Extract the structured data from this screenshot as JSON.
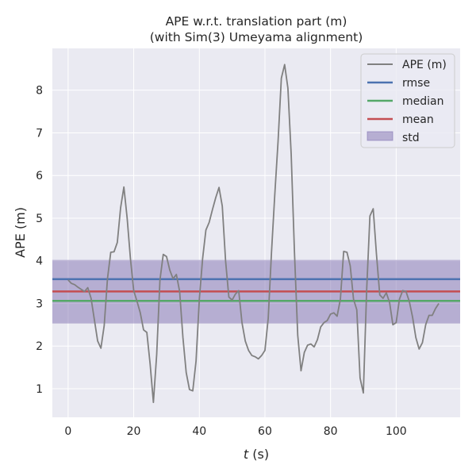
{
  "chart_data": {
    "type": "line",
    "title_line1": "APE w.r.t. translation part (m)",
    "title_line2": "(with Sim(3) Umeyama alignment)",
    "xlabel_var": "t",
    "xlabel_unit": " (s)",
    "ylabel": "APE (m)",
    "xlim": [
      -4.8,
      119.5
    ],
    "ylim": [
      0.33,
      8.98
    ],
    "xticks": [
      0,
      20,
      40,
      60,
      80,
      100
    ],
    "yticks": [
      1,
      2,
      3,
      4,
      5,
      6,
      7,
      8
    ],
    "grid": true,
    "legend_position": "top-right",
    "colors": {
      "background": "#eaeaf2",
      "grid": "#ffffff",
      "ape": "#808080",
      "rmse": "#4c72b0",
      "median": "#55a868",
      "mean": "#c44e52",
      "std": "#8172b2"
    },
    "legend": {
      "ape": "APE (m)",
      "rmse": "rmse",
      "median": "median",
      "mean": "mean",
      "std": "std"
    },
    "stats": {
      "rmse": 3.57,
      "median": 3.06,
      "mean": 3.28,
      "std_low": 2.53,
      "std_high": 4.02
    },
    "series": [
      {
        "name": "APE (m)",
        "x": [
          0,
          1,
          2,
          3,
          4,
          5,
          6,
          7,
          8,
          9,
          10,
          11,
          12,
          13,
          14,
          15,
          16,
          17,
          18,
          19,
          20,
          21,
          22,
          23,
          24,
          25,
          26,
          27,
          28,
          29,
          30,
          31,
          32,
          33,
          34,
          35,
          36,
          37,
          38,
          39,
          40,
          41,
          42,
          43,
          44,
          45,
          46,
          47,
          48,
          49,
          50,
          51,
          52,
          53,
          54,
          55,
          56,
          57,
          58,
          59,
          60,
          61,
          62,
          63,
          64,
          65,
          66,
          67,
          68,
          69,
          70,
          71,
          72,
          73,
          74,
          75,
          76,
          77,
          78,
          79,
          80,
          81,
          82,
          83,
          84,
          85,
          86,
          87,
          88,
          89,
          90,
          91,
          92,
          93,
          94,
          95,
          96,
          97,
          98,
          99,
          100,
          101,
          102,
          103,
          104,
          105,
          106,
          107,
          108,
          109,
          110,
          111,
          112,
          113
        ],
        "values": [
          3.55,
          3.47,
          3.44,
          3.38,
          3.33,
          3.28,
          3.37,
          3.12,
          2.62,
          2.12,
          1.95,
          2.48,
          3.58,
          4.2,
          4.21,
          4.43,
          5.24,
          5.73,
          5.0,
          4.05,
          3.3,
          3.05,
          2.78,
          2.38,
          2.32,
          1.58,
          0.68,
          1.8,
          3.55,
          4.15,
          4.1,
          3.78,
          3.58,
          3.68,
          3.28,
          2.2,
          1.38,
          0.98,
          0.95,
          1.65,
          3.1,
          4.05,
          4.72,
          4.9,
          5.2,
          5.48,
          5.72,
          5.28,
          4.0,
          3.15,
          3.08,
          3.22,
          3.3,
          2.55,
          2.12,
          1.9,
          1.78,
          1.75,
          1.7,
          1.78,
          1.9,
          2.65,
          4.2,
          5.55,
          6.8,
          8.28,
          8.6,
          8.05,
          6.5,
          4.2,
          2.25,
          1.42,
          1.85,
          2.02,
          2.05,
          1.98,
          2.15,
          2.45,
          2.55,
          2.6,
          2.75,
          2.78,
          2.7,
          3.1,
          4.22,
          4.2,
          3.88,
          3.1,
          2.85,
          1.25,
          0.9,
          3.3,
          5.05,
          5.22,
          4.15,
          3.2,
          3.12,
          3.25,
          3.02,
          2.5,
          2.55,
          3.1,
          3.3,
          3.28,
          3.05,
          2.68,
          2.2,
          1.93,
          2.08,
          2.5,
          2.72,
          2.72,
          2.88,
          3.0
        ]
      }
    ]
  }
}
